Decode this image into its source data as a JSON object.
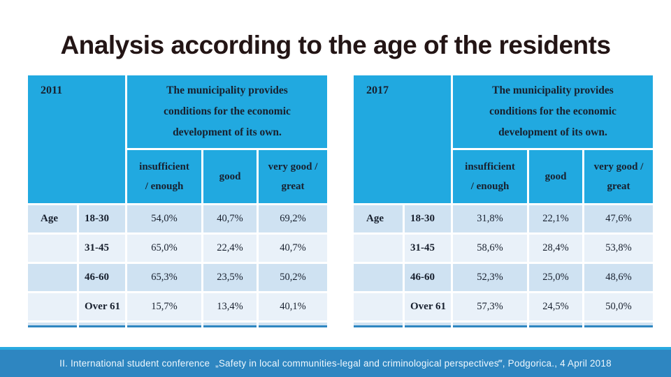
{
  "slide": {
    "title": "Analysis according to the age of the residents",
    "footer_text": "II. International student conference  „Safety in local communities-legal and criminological perspectives‴, Podgorica., 4 April 2018"
  },
  "colors": {
    "header_bg": "#21a9e0",
    "row_odd": "#cfe2f2",
    "row_even": "#e9f1f9",
    "table_bottom_border": "#2e86c1",
    "footer_accent_line": "#29a9e0",
    "footer_band": "#2e86c1",
    "title_color": "#231515"
  },
  "chart_data": [
    {
      "type": "table",
      "year": "2011",
      "question": "The municipality provides\nconditions for the economic\ndevelopment of its own.",
      "row_header": "Age",
      "columns": [
        "insufficient\n/ enough",
        "good",
        "very good /\ngreat"
      ],
      "rows": [
        {
          "age": "18-30",
          "values": [
            "54,0%",
            "40,7%",
            "69,2%"
          ]
        },
        {
          "age": "31-45",
          "values": [
            "65,0%",
            "22,4%",
            "40,7%"
          ]
        },
        {
          "age": "46-60",
          "values": [
            "65,3%",
            "23,5%",
            "50,2%"
          ]
        },
        {
          "age": "Over 61",
          "values": [
            "15,7%",
            "13,4%",
            "40,1%"
          ]
        }
      ]
    },
    {
      "type": "table",
      "year": "2017",
      "question": "The municipality provides\nconditions for the economic\ndevelopment of its own.",
      "row_header": "Age",
      "columns": [
        "insufficient\n/ enough",
        "good",
        "very good /\ngreat"
      ],
      "rows": [
        {
          "age": "18-30",
          "values": [
            "31,8%",
            "22,1%",
            "47,6%"
          ]
        },
        {
          "age": "31-45",
          "values": [
            "58,6%",
            "28,4%",
            "53,8%"
          ]
        },
        {
          "age": "46-60",
          "values": [
            "52,3%",
            "25,0%",
            "48,6%"
          ]
        },
        {
          "age": "Over 61",
          "values": [
            "57,3%",
            "24,5%",
            "50,0%"
          ]
        }
      ]
    }
  ]
}
